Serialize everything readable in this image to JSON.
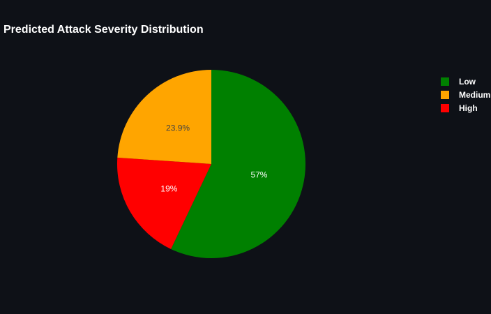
{
  "chart_data": {
    "type": "pie",
    "title": "Predicted Attack Severity Distribution",
    "labels": [
      "Low",
      "Medium",
      "High"
    ],
    "values": [
      57,
      23.9,
      19
    ],
    "display_labels": [
      "57%",
      "23.9%",
      "19%"
    ],
    "colors": [
      "#008000",
      "#ffa500",
      "#ff0000"
    ],
    "label_colors": [
      "#ffffff",
      "#444444",
      "#ffffff"
    ],
    "slice_order": [
      "Low",
      "High",
      "Medium"
    ],
    "direction": "clockwise",
    "start": "top",
    "legend": "top-right"
  }
}
